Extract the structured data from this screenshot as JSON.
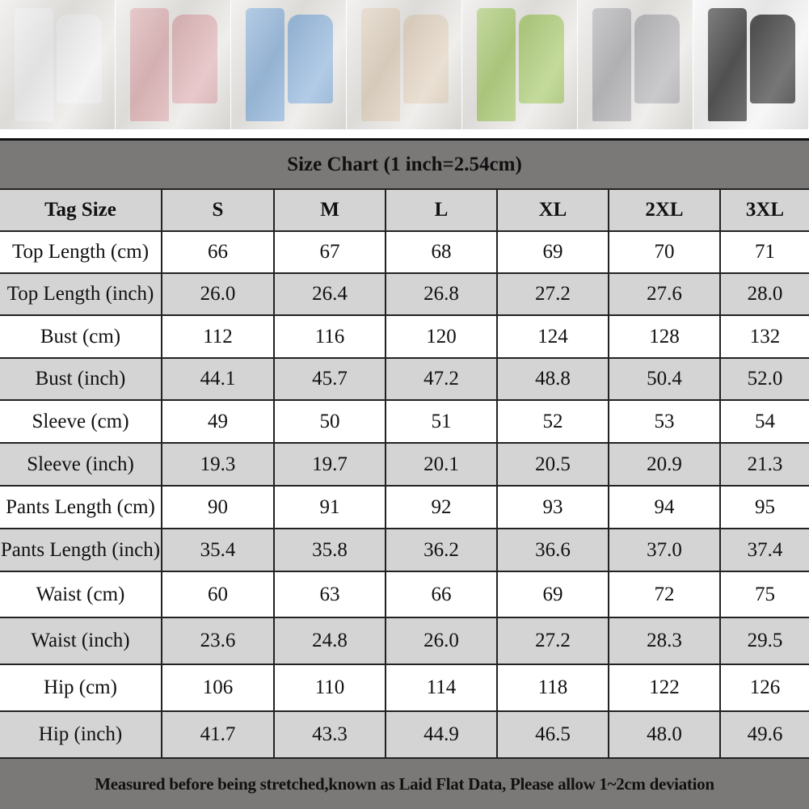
{
  "product_photos": [
    {
      "color_name": "white",
      "color": "#ececec"
    },
    {
      "color_name": "pink",
      "color": "#d9a5a8"
    },
    {
      "color_name": "blue",
      "color": "#7ea9d6"
    },
    {
      "color_name": "beige",
      "color": "#dccbb5"
    },
    {
      "color_name": "green",
      "color": "#9cc25a"
    },
    {
      "color_name": "gray",
      "color": "#a6a6aa"
    },
    {
      "color_name": "black",
      "color": "#1c1c1c"
    }
  ],
  "title": "Size Chart (1 inch=2.54cm)",
  "table": {
    "headers": [
      "Tag Size",
      "S",
      "M",
      "L",
      "XL",
      "2XL",
      "3XL"
    ],
    "rows": [
      [
        "Top Length (cm)",
        "66",
        "67",
        "68",
        "69",
        "70",
        "71"
      ],
      [
        "Top Length (inch)",
        "26.0",
        "26.4",
        "26.8",
        "27.2",
        "27.6",
        "28.0"
      ],
      [
        "Bust (cm)",
        "112",
        "116",
        "120",
        "124",
        "128",
        "132"
      ],
      [
        "Bust (inch)",
        "44.1",
        "45.7",
        "47.2",
        "48.8",
        "50.4",
        "52.0"
      ],
      [
        "Sleeve (cm)",
        "49",
        "50",
        "51",
        "52",
        "53",
        "54"
      ],
      [
        "Sleeve (inch)",
        "19.3",
        "19.7",
        "20.1",
        "20.5",
        "20.9",
        "21.3"
      ],
      [
        "Pants Length (cm)",
        "90",
        "91",
        "92",
        "93",
        "94",
        "95"
      ],
      [
        "Pants Length (inch)",
        "35.4",
        "35.8",
        "36.2",
        "36.6",
        "37.0",
        "37.4"
      ],
      [
        "Waist (cm)",
        "60",
        "63",
        "66",
        "69",
        "72",
        "75"
      ],
      [
        "Waist (inch)",
        "23.6",
        "24.8",
        "26.0",
        "27.2",
        "28.3",
        "29.5"
      ],
      [
        "Hip (cm)",
        "106",
        "110",
        "114",
        "118",
        "122",
        "126"
      ],
      [
        "Hip (inch)",
        "41.7",
        "43.3",
        "44.9",
        "46.5",
        "48.0",
        "49.6"
      ]
    ]
  },
  "footer": "Measured before being stretched,known as Laid Flat Data, Please allow 1~2cm deviation"
}
